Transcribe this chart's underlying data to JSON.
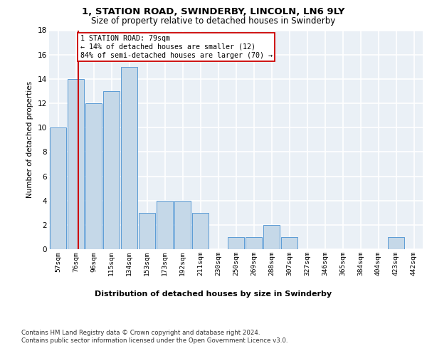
{
  "title": "1, STATION ROAD, SWINDERBY, LINCOLN, LN6 9LY",
  "subtitle": "Size of property relative to detached houses in Swinderby",
  "xlabel_bottom": "Distribution of detached houses by size in Swinderby",
  "ylabel": "Number of detached properties",
  "categories": [
    "57sqm",
    "76sqm",
    "96sqm",
    "115sqm",
    "134sqm",
    "153sqm",
    "173sqm",
    "192sqm",
    "211sqm",
    "230sqm",
    "250sqm",
    "269sqm",
    "288sqm",
    "307sqm",
    "327sqm",
    "346sqm",
    "365sqm",
    "384sqm",
    "404sqm",
    "423sqm",
    "442sqm"
  ],
  "values": [
    10,
    14,
    12,
    13,
    15,
    3,
    4,
    4,
    3,
    0,
    1,
    1,
    2,
    1,
    0,
    0,
    0,
    0,
    0,
    1,
    0
  ],
  "bar_color": "#c5d8e8",
  "bar_edge_color": "#5b9bd5",
  "reference_line_x": 1.15,
  "reference_line_color": "#cc0000",
  "annotation_text": "1 STATION ROAD: 79sqm\n← 14% of detached houses are smaller (12)\n84% of semi-detached houses are larger (70) →",
  "annotation_box_color": "#ffffff",
  "annotation_box_edge": "#cc0000",
  "ylim": [
    0,
    18
  ],
  "yticks": [
    0,
    2,
    4,
    6,
    8,
    10,
    12,
    14,
    16,
    18
  ],
  "background_color": "#eaf0f6",
  "grid_color": "#ffffff",
  "footer_line1": "Contains HM Land Registry data © Crown copyright and database right 2024.",
  "footer_line2": "Contains public sector information licensed under the Open Government Licence v3.0."
}
